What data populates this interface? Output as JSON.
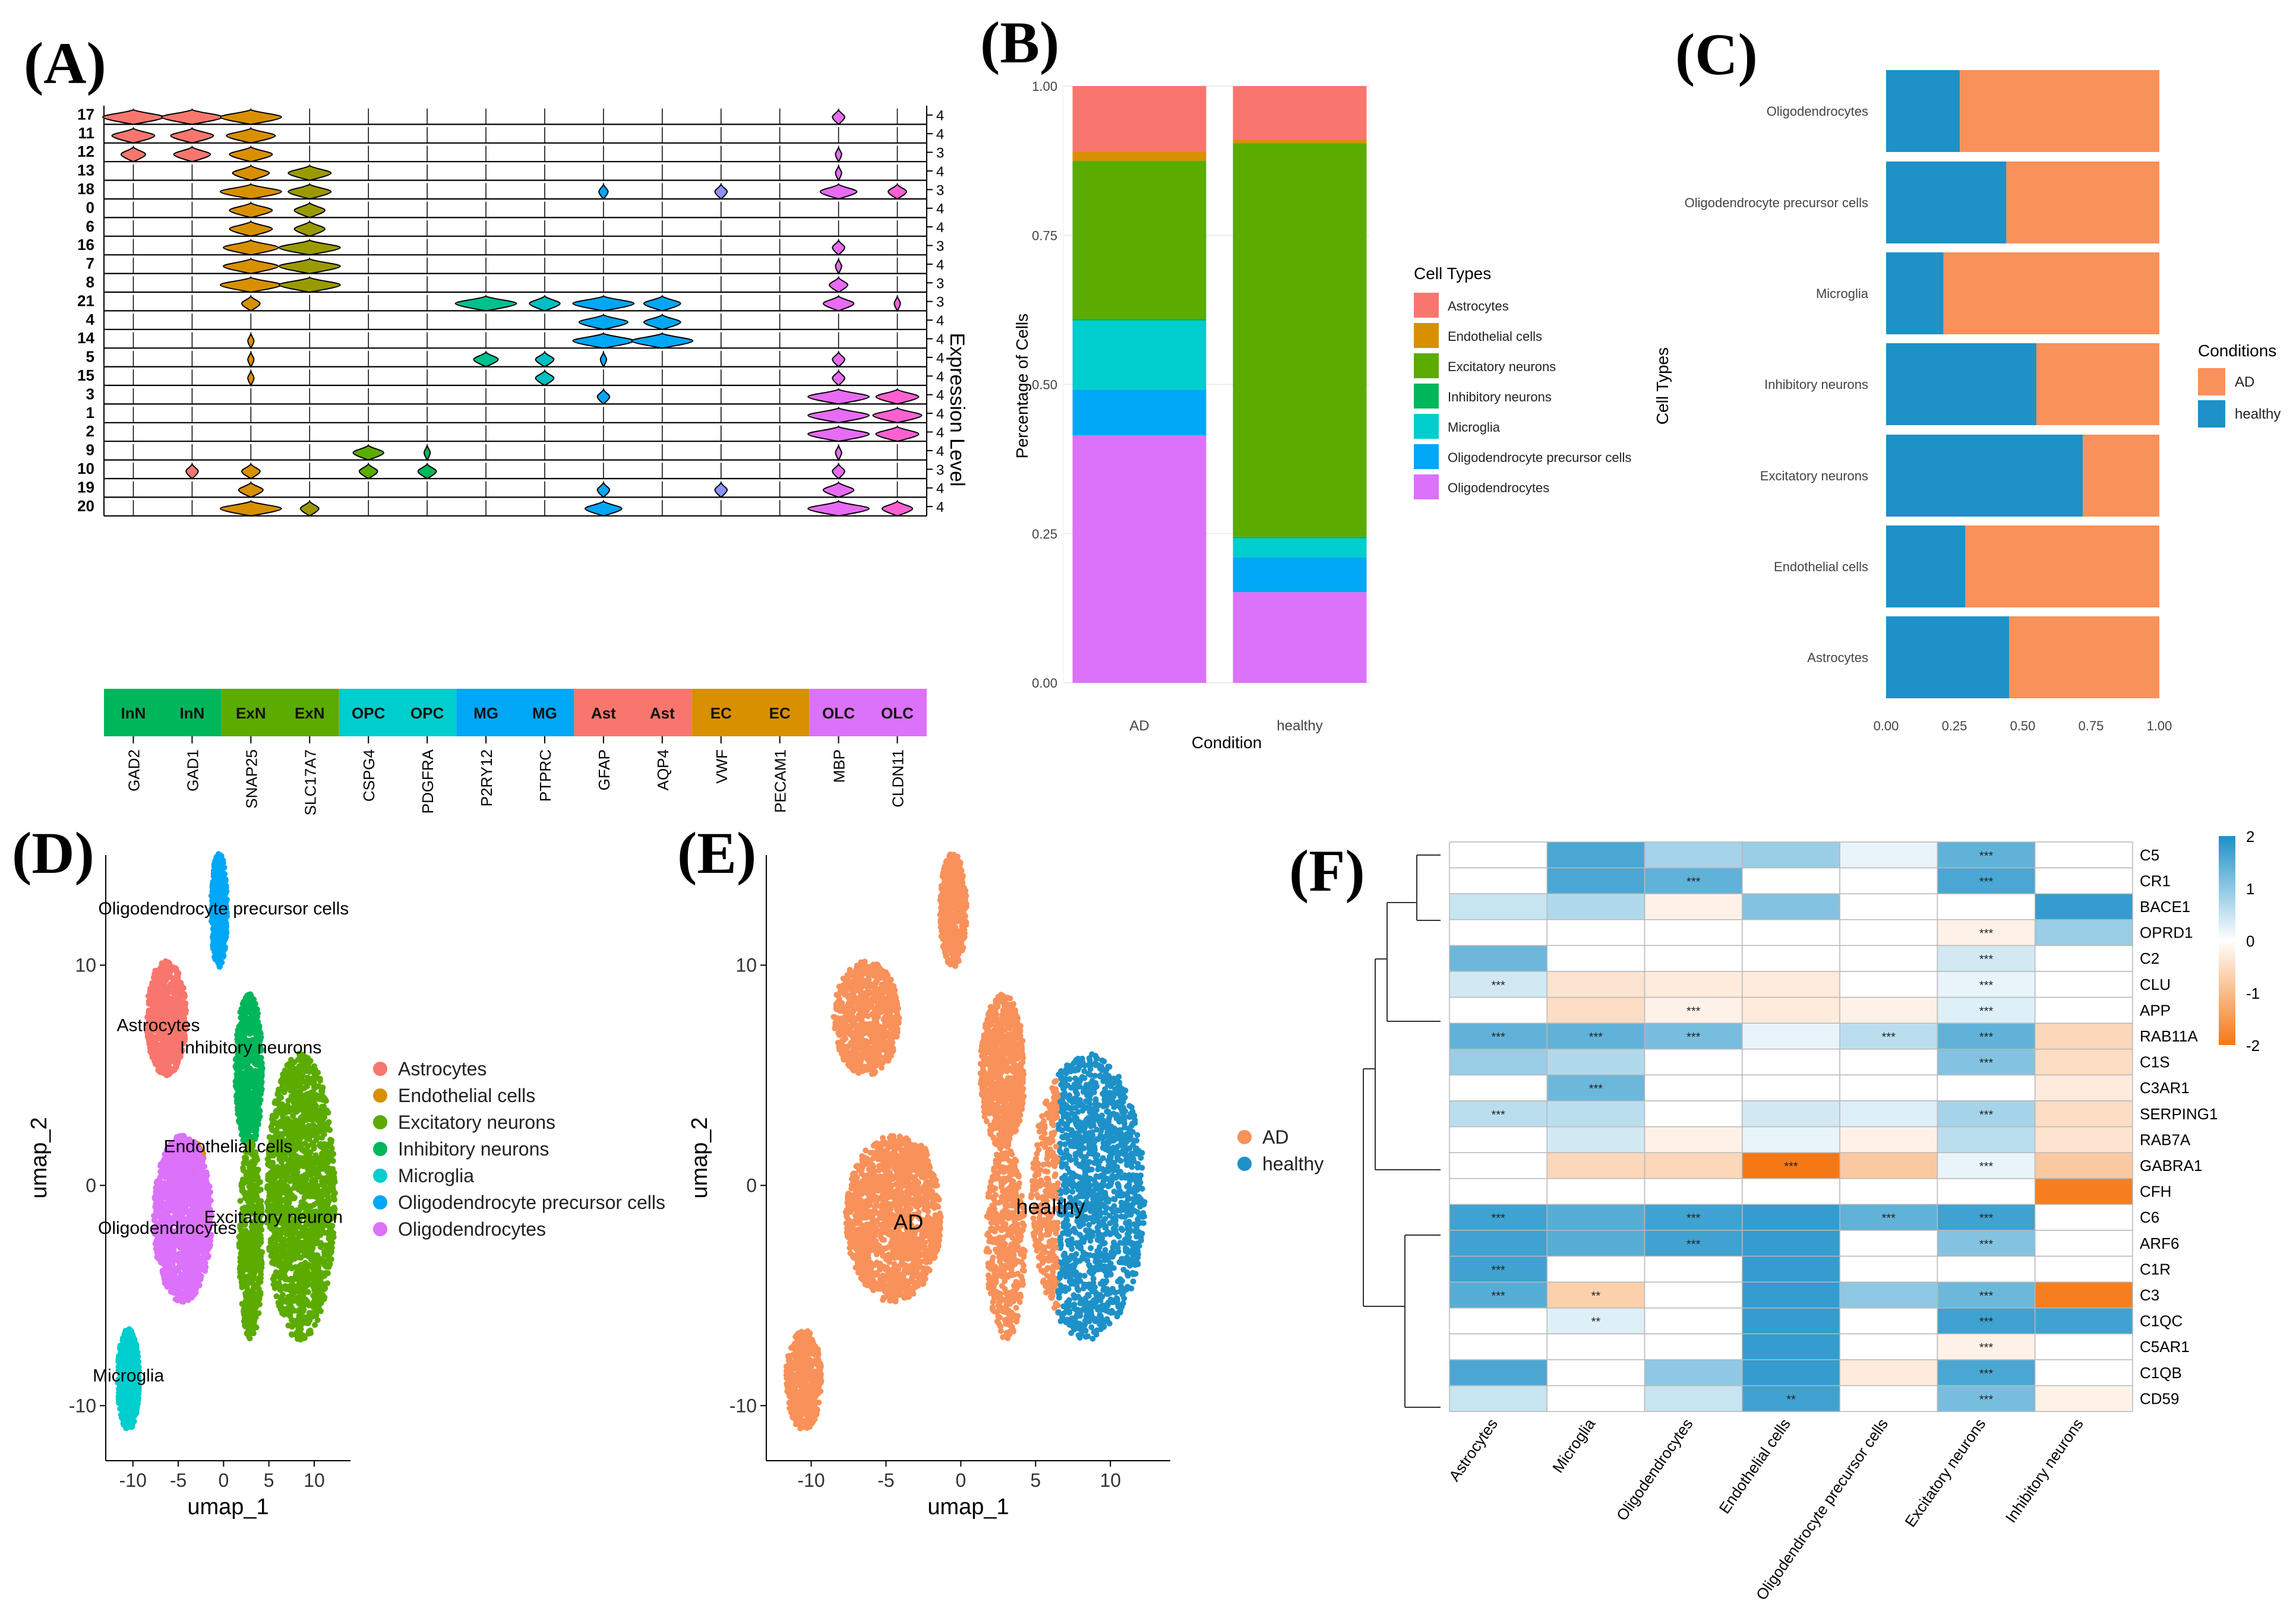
{
  "panel_labels": [
    "(A)",
    "(B)",
    "(C)",
    "(D)",
    "(E)",
    "(F)"
  ],
  "colors": {
    "Astrocytes": "#f8766d",
    "Endothelial cells": "#d89000",
    "Excitatory neurons": "#5bab00",
    "Inhibitory neurons": "#00b65a",
    "Microglia": "#00cdcd",
    "Oligodendrocyte precursor cells": "#00a7f5",
    "Oligodendrocytes": "#dc71fa",
    "AD": "#f8915a",
    "healthy": "#1d91c8"
  },
  "chart_data": [
    {
      "panel": "A",
      "type": "violin",
      "ylabel": "Expression Level",
      "clusters": [
        "17",
        "11",
        "12",
        "13",
        "18",
        "0",
        "6",
        "16",
        "7",
        "8",
        "21",
        "4",
        "14",
        "5",
        "15",
        "3",
        "1",
        "2",
        "9",
        "10",
        "19",
        "20"
      ],
      "max_levels": [
        "4",
        "4",
        "3",
        "4",
        "3",
        "4",
        "4",
        "3",
        "4",
        "3",
        "3",
        "4",
        "4",
        "4",
        "4",
        "4",
        "4",
        "4",
        "4",
        "3",
        "4",
        "4"
      ],
      "genes": [
        "GAD2",
        "GAD1",
        "SNAP25",
        "SLC17A7",
        "CSPG4",
        "PDGFRA",
        "P2RY12",
        "PTPRC",
        "GFAP",
        "AQP4",
        "VWF",
        "PECAM1",
        "MBP",
        "CLDN11"
      ],
      "gene_groups": [
        {
          "label": "InN",
          "color": "#00b65a",
          "span": [
            0,
            1
          ]
        },
        {
          "label": "ExN",
          "color": "#5bab00",
          "span": [
            2,
            3
          ]
        },
        {
          "label": "OPC",
          "color": "#00cdcd",
          "span": [
            4,
            5
          ]
        },
        {
          "label": "MG",
          "color": "#00a7f5",
          "span": [
            6,
            7
          ]
        },
        {
          "label": "Ast",
          "color": "#f8766d",
          "span": [
            8,
            9
          ]
        },
        {
          "label": "EC",
          "color": "#d89000",
          "span": [
            10,
            11
          ]
        },
        {
          "label": "OLC",
          "color": "#dc71fa",
          "span": [
            12,
            13
          ]
        }
      ],
      "violin_colors": [
        "#f8766d",
        "#f8766d",
        "#d89000",
        "#9a9a00",
        "#5bab00",
        "#00b65a",
        "#00c08d",
        "#00bfc4",
        "#00a7f5",
        "#00a7f5",
        "#8b93ff",
        "#b983ff",
        "#e76bf3",
        "#fd61d1"
      ],
      "expression": [
        [
          1,
          1,
          1,
          0,
          0,
          0,
          0,
          0,
          0,
          0,
          0,
          0,
          0.2,
          0
        ],
        [
          0.7,
          0.7,
          0.8,
          0,
          0,
          0,
          0,
          0,
          0,
          0,
          0,
          0,
          0,
          0
        ],
        [
          0.4,
          0.6,
          0.7,
          0,
          0,
          0,
          0,
          0,
          0,
          0,
          0,
          0,
          0.1,
          0
        ],
        [
          0,
          0,
          0.6,
          0.7,
          0,
          0,
          0,
          0,
          0,
          0,
          0,
          0,
          0.1,
          0
        ],
        [
          0,
          0,
          1,
          0.7,
          0,
          0,
          0,
          0,
          0.15,
          0,
          0.2,
          0,
          0.6,
          0.3
        ],
        [
          0,
          0,
          0.7,
          0.5,
          0,
          0,
          0,
          0,
          0,
          0,
          0,
          0,
          0,
          0
        ],
        [
          0,
          0,
          0.7,
          0.5,
          0,
          0,
          0,
          0,
          0,
          0,
          0,
          0,
          0,
          0
        ],
        [
          0,
          0,
          0.9,
          1,
          0,
          0,
          0,
          0,
          0,
          0,
          0,
          0,
          0.2,
          0
        ],
        [
          0,
          0,
          0.9,
          1,
          0,
          0,
          0,
          0,
          0,
          0,
          0,
          0,
          0.1,
          0
        ],
        [
          0,
          0,
          1,
          1,
          0,
          0,
          0,
          0,
          0,
          0,
          0,
          0,
          0.3,
          0
        ],
        [
          0,
          0,
          0.3,
          0,
          0,
          0,
          1,
          0.5,
          1,
          0.6,
          0,
          0,
          0.5,
          0.1
        ],
        [
          0,
          0,
          0,
          0,
          0,
          0,
          0,
          0,
          0.8,
          0.6,
          0,
          0,
          0,
          0
        ],
        [
          0,
          0,
          0.1,
          0,
          0,
          0,
          0,
          0,
          1,
          1,
          0,
          0,
          0,
          0
        ],
        [
          0,
          0,
          0.1,
          0,
          0,
          0,
          0.4,
          0.3,
          0.1,
          0,
          0,
          0,
          0.2,
          0
        ],
        [
          0,
          0,
          0.1,
          0,
          0,
          0,
          0,
          0.3,
          0,
          0,
          0,
          0,
          0.2,
          0
        ],
        [
          0,
          0,
          0,
          0,
          0,
          0,
          0,
          0,
          0.2,
          0,
          0,
          0,
          1,
          0.7
        ],
        [
          0,
          0,
          0,
          0,
          0,
          0,
          0,
          0,
          0,
          0,
          0,
          0,
          1,
          0.8
        ],
        [
          0,
          0,
          0,
          0,
          0,
          0,
          0,
          0,
          0,
          0,
          0,
          0,
          1,
          0.7
        ],
        [
          0,
          0,
          0,
          0,
          0.5,
          0.1,
          0,
          0,
          0,
          0,
          0,
          0,
          0.1,
          0
        ],
        [
          0,
          0.2,
          0.3,
          0,
          0.3,
          0.3,
          0,
          0,
          0,
          0,
          0,
          0,
          0.2,
          0
        ],
        [
          0,
          0,
          0.4,
          0,
          0,
          0,
          0,
          0,
          0.2,
          0,
          0.2,
          0,
          0.5,
          0
        ],
        [
          0,
          0,
          1,
          0.3,
          0,
          0,
          0,
          0,
          0.6,
          0,
          0,
          0,
          1,
          0.5
        ]
      ]
    },
    {
      "panel": "B",
      "type": "stacked-bar",
      "xlabel": "Condition",
      "ylabel": "Percentage of Cells",
      "categories": [
        "AD",
        "healthy"
      ],
      "ylim": [
        0,
        1
      ],
      "yticks": [
        "0.00",
        "0.25",
        "0.50",
        "0.75",
        "1.00"
      ],
      "legend_title": "Cell Types",
      "series": [
        {
          "name": "Oligodendrocytes",
          "values": [
            0.415,
            0.152
          ]
        },
        {
          "name": "Oligodendrocyte precursor cells",
          "values": [
            0.076,
            0.058
          ]
        },
        {
          "name": "Microglia",
          "values": [
            0.116,
            0.032
          ]
        },
        {
          "name": "Inhibitory neurons",
          "values": [
            0.003,
            0.003
          ]
        },
        {
          "name": "Excitatory neurons",
          "values": [
            0.265,
            0.659
          ]
        },
        {
          "name": "Endothelial cells",
          "values": [
            0.015,
            0.006
          ]
        },
        {
          "name": "Astrocytes",
          "values": [
            0.11,
            0.09
          ]
        }
      ]
    },
    {
      "panel": "C",
      "type": "stacked-bar-horizontal",
      "ylabel": "Cell Types",
      "categories": [
        "Oligodendrocytes",
        "Oligodendrocyte precursor cells",
        "Microglia",
        "Inhibitory neurons",
        "Excitatory neurons",
        "Endothelial cells",
        "Astrocytes"
      ],
      "xticks": [
        "0.00",
        "0.25",
        "0.50",
        "0.75",
        "1.00"
      ],
      "legend_title": "Conditions",
      "legend": [
        "AD",
        "healthy"
      ],
      "healthy_fraction": [
        0.27,
        0.44,
        0.21,
        0.55,
        0.72,
        0.29,
        0.45
      ]
    },
    {
      "panel": "D",
      "type": "scatter",
      "xlabel": "umap_1",
      "ylabel": "umap_2",
      "xticks": [
        "-10",
        "-5",
        "0",
        "5",
        "10"
      ],
      "yticks": [
        "10",
        "0",
        "-10"
      ],
      "xlim": [
        -13,
        14
      ],
      "ylim": [
        -12.5,
        15
      ],
      "legend": [
        "Astrocytes",
        "Endothelial cells",
        "Excitatory neurons",
        "Inhibitory neurons",
        "Microglia",
        "Oligodendrocyte precursor cells",
        "Oligodendrocytes"
      ],
      "cluster_labels": [
        {
          "text": "Oligodendrocyte precursor cells",
          "x": 0,
          "y": 12.3
        },
        {
          "text": "Astrocytes",
          "x": -7.2,
          "y": 7
        },
        {
          "text": "Inhibitory neurons",
          "x": 3,
          "y": 6
        },
        {
          "text": "Endothelial cells",
          "x": 0.5,
          "y": 1.5
        },
        {
          "text": "Oligodendrocytes",
          "x": -6.2,
          "y": -2.2
        },
        {
          "text": "Excitatory neuron",
          "x": 5.5,
          "y": -1.7
        },
        {
          "text": "Microglia",
          "x": -10.5,
          "y": -8.9
        }
      ]
    },
    {
      "panel": "E",
      "type": "scatter",
      "xlabel": "umap_1",
      "ylabel": "umap_2",
      "xticks": [
        "-10",
        "-5",
        "0",
        "5",
        "10"
      ],
      "yticks": [
        "10",
        "0",
        "-10"
      ],
      "xlim": [
        -13,
        14
      ],
      "ylim": [
        -12.5,
        15
      ],
      "legend": [
        "AD",
        "healthy"
      ],
      "cluster_labels": [
        {
          "text": "AD",
          "x": -3.5,
          "y": -2
        },
        {
          "text": "healthy",
          "x": 6,
          "y": -1.3
        }
      ]
    },
    {
      "panel": "F",
      "type": "heatmap",
      "columns": [
        "Astrocytes",
        "Microglia",
        "Oligodendrocytes",
        "Endothelial cells",
        "Oligodendrocyte precursor cells",
        "Excitatory neurons",
        "Inhibitory neurons"
      ],
      "rows": [
        "C5",
        "CR1",
        "BACE1",
        "OPRD1",
        "C2",
        "CLU",
        "APP",
        "RAB11A",
        "C1S",
        "C3AR1",
        "SERPING1",
        "RAB7A",
        "GABRA1",
        "CFH",
        "C6",
        "ARF6",
        "C1R",
        "C3",
        "C1QC",
        "C5AR1",
        "C1QB",
        "CD59"
      ],
      "scale": {
        "min": -2,
        "max": 2,
        "ticks": [
          "2",
          "1",
          "0",
          "-1",
          "-2"
        ]
      },
      "values": [
        [
          0,
          1.6,
          0.8,
          0.9,
          0.2,
          1.4,
          0
        ],
        [
          0,
          1.6,
          1.4,
          0,
          0,
          1.6,
          0
        ],
        [
          0.5,
          0.7,
          -0.2,
          1.1,
          0,
          0,
          1.8
        ],
        [
          0,
          0,
          0,
          0,
          0,
          -0.2,
          0.9
        ],
        [
          1.3,
          0,
          0,
          0,
          0,
          0.4,
          0
        ],
        [
          0.4,
          -0.4,
          -0.3,
          -0.3,
          0,
          0.2,
          0
        ],
        [
          0,
          -0.5,
          -0.2,
          -0.3,
          -0.2,
          0.3,
          0
        ],
        [
          1.4,
          1.4,
          1.2,
          0.2,
          0.6,
          1.4,
          -0.6
        ],
        [
          0.9,
          0.7,
          0,
          0,
          0,
          1.1,
          -0.5
        ],
        [
          0,
          1.3,
          0,
          0,
          0,
          0,
          -0.3
        ],
        [
          0.6,
          0.6,
          0,
          0.4,
          0.3,
          0.8,
          -0.5
        ],
        [
          0,
          0.4,
          -0.2,
          0.2,
          -0.2,
          0.6,
          -0.4
        ],
        [
          0,
          -0.6,
          -0.6,
          -2,
          -0.8,
          0.2,
          -0.8
        ],
        [
          0,
          0,
          0,
          0,
          0,
          0,
          -1.9
        ],
        [
          1.7,
          1.5,
          1.7,
          1.8,
          1.4,
          1.7,
          0
        ],
        [
          1.7,
          1.5,
          1.7,
          1.8,
          0,
          1.1,
          0
        ],
        [
          1.7,
          0,
          0,
          1.8,
          0,
          0,
          0
        ],
        [
          1.5,
          -0.7,
          0,
          1.8,
          1,
          1.3,
          -1.9
        ],
        [
          0,
          0.3,
          0,
          1.8,
          0,
          1.7,
          1.7
        ],
        [
          0,
          0,
          0,
          1.8,
          0,
          -0.2,
          0
        ],
        [
          1.6,
          0,
          1,
          1.8,
          -0.3,
          1.6,
          0
        ],
        [
          0.5,
          0,
          0.5,
          1.7,
          0,
          1.2,
          -0.2
        ]
      ],
      "stars": [
        [
          "",
          "",
          "",
          "",
          "",
          "***",
          ""
        ],
        [
          "",
          "",
          "***",
          "",
          "",
          "***",
          ""
        ],
        [
          "",
          "",
          "",
          "",
          "",
          "",
          ""
        ],
        [
          "",
          "",
          "",
          "",
          "",
          "***",
          ""
        ],
        [
          "",
          "",
          "",
          "",
          "",
          "***",
          ""
        ],
        [
          "***",
          "",
          "",
          "",
          "",
          "***",
          ""
        ],
        [
          "",
          "",
          "***",
          "",
          "",
          "***",
          ""
        ],
        [
          "***",
          "***",
          "***",
          "",
          "***",
          "***",
          ""
        ],
        [
          "",
          "",
          "",
          "",
          "",
          "***",
          ""
        ],
        [
          "",
          "***",
          "",
          "",
          "",
          "",
          ""
        ],
        [
          "***",
          "",
          "",
          "",
          "",
          "***",
          ""
        ],
        [
          "",
          "",
          "",
          "",
          "",
          "",
          ""
        ],
        [
          "",
          "",
          "",
          "***",
          "",
          "***",
          ""
        ],
        [
          "",
          "",
          "",
          "",
          "",
          "",
          ""
        ],
        [
          "***",
          "",
          "***",
          "",
          "***",
          "***",
          ""
        ],
        [
          "",
          "",
          "***",
          "",
          "",
          "***",
          ""
        ],
        [
          "***",
          "",
          "",
          "",
          "",
          "",
          ""
        ],
        [
          "***",
          "**",
          "",
          "",
          "",
          "***",
          ""
        ],
        [
          "",
          "**",
          "",
          "",
          "",
          "***",
          ""
        ],
        [
          "",
          "",
          "",
          "",
          "",
          "***",
          ""
        ],
        [
          "",
          "",
          "",
          "",
          "",
          "***",
          ""
        ],
        [
          "",
          "",
          "",
          "**",
          "",
          "***",
          ""
        ]
      ]
    }
  ]
}
